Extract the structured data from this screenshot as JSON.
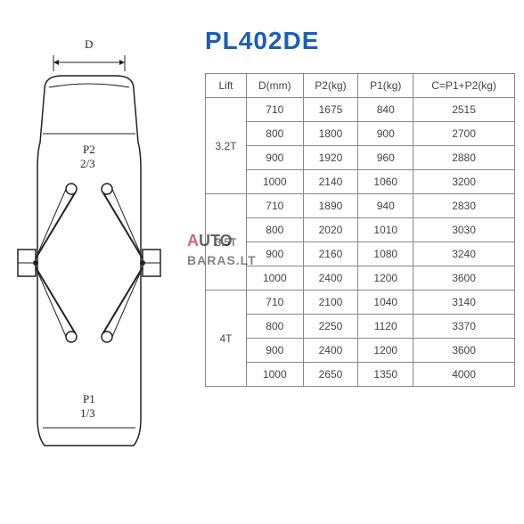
{
  "model_title": "PL402DE",
  "table": {
    "columns": [
      "Lift",
      "D(mm)",
      "P2(kg)",
      "P1(kg)",
      "C=P1+P2(kg)"
    ],
    "groups": [
      {
        "lift": "3.2T",
        "rows": [
          [
            "710",
            "1675",
            "840",
            "2515"
          ],
          [
            "800",
            "1800",
            "900",
            "2700"
          ],
          [
            "900",
            "1920",
            "960",
            "2880"
          ],
          [
            "1000",
            "2140",
            "1060",
            "3200"
          ]
        ]
      },
      {
        "lift": "3.5T",
        "rows": [
          [
            "710",
            "1890",
            "940",
            "2830"
          ],
          [
            "800",
            "2020",
            "1010",
            "3030"
          ],
          [
            "900",
            "2160",
            "1080",
            "3240"
          ],
          [
            "1000",
            "2400",
            "1200",
            "3600"
          ]
        ]
      },
      {
        "lift": "4T",
        "rows": [
          [
            "710",
            "2100",
            "1040",
            "3140"
          ],
          [
            "800",
            "2250",
            "1120",
            "3370"
          ],
          [
            "900",
            "2400",
            "1200",
            "3600"
          ],
          [
            "1000",
            "2650",
            "1350",
            "4000"
          ]
        ]
      }
    ]
  },
  "diagram": {
    "dimension_label": "D",
    "p2_label": "P2",
    "p2_fraction": "2/3",
    "p1_label": "P1",
    "p1_fraction": "1/3",
    "stroke": "#222222",
    "fill": "#ffffff"
  },
  "watermark": {
    "line1_a": "A",
    "line1_b": "UTO",
    "line2": "BARAS.LT"
  }
}
